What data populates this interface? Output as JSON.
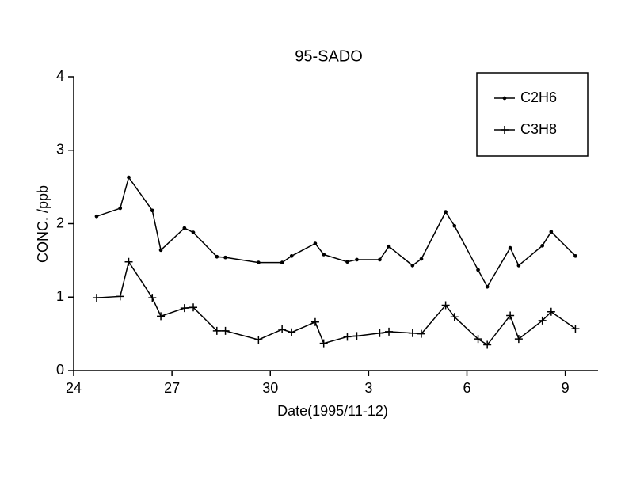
{
  "chart_data": {
    "type": "line",
    "title": "95-SADO",
    "xlabel": "Date(1995/11-12)",
    "ylabel": "CONC. /ppb",
    "xlim": [
      0,
      16
    ],
    "xticks": [
      {
        "value": 0,
        "label": "24"
      },
      {
        "value": 3,
        "label": "27"
      },
      {
        "value": 6,
        "label": "30"
      },
      {
        "value": 9,
        "label": "3"
      },
      {
        "value": 12,
        "label": "6"
      },
      {
        "value": 15,
        "label": "9"
      }
    ],
    "ylim": [
      0,
      4
    ],
    "yticks": [
      0,
      1,
      2,
      3,
      4
    ],
    "legend": "top-right",
    "x": [
      0.7,
      1.42,
      1.68,
      2.4,
      2.66,
      3.38,
      3.65,
      4.37,
      4.63,
      5.64,
      6.36,
      6.65,
      7.37,
      7.63,
      8.35,
      8.64,
      9.34,
      9.62,
      10.34,
      10.61,
      11.35,
      11.62,
      12.34,
      12.62,
      13.32,
      13.58,
      14.3,
      14.57,
      15.31
    ],
    "series": [
      {
        "name": "C2H6",
        "color": "#000000",
        "marker": "dot",
        "values": [
          2.1,
          2.21,
          2.63,
          2.18,
          1.64,
          1.94,
          1.88,
          1.55,
          1.54,
          1.47,
          1.47,
          1.56,
          1.73,
          1.58,
          1.48,
          1.51,
          1.51,
          1.69,
          1.43,
          1.52,
          2.16,
          1.97,
          1.37,
          1.14,
          1.67,
          1.43,
          1.7,
          1.89,
          1.56
        ]
      },
      {
        "name": "C3H8",
        "color": "#000000",
        "marker": "plus",
        "values": [
          0.99,
          1.01,
          1.48,
          0.99,
          0.74,
          0.85,
          0.86,
          0.54,
          0.54,
          0.42,
          0.56,
          0.52,
          0.66,
          0.37,
          0.46,
          0.47,
          0.51,
          0.53,
          0.51,
          0.5,
          0.89,
          0.73,
          0.43,
          0.35,
          0.75,
          0.43,
          0.68,
          0.8,
          0.57
        ]
      }
    ]
  }
}
